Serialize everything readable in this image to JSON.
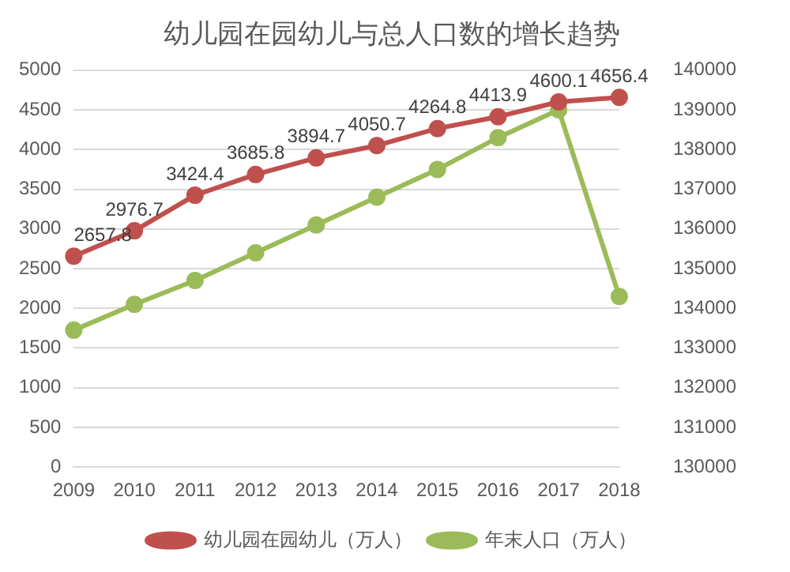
{
  "chart_data": {
    "type": "line",
    "title": "幼儿园在园幼儿与总人口数的增长趋势",
    "categories": [
      "2009",
      "2010",
      "2011",
      "2012",
      "2013",
      "2014",
      "2015",
      "2016",
      "2017",
      "2018"
    ],
    "series": [
      {
        "name": "幼儿园在园幼儿（万人）",
        "color": "#c0504d",
        "values": [
          2657.8,
          2976.7,
          3424.4,
          3685.8,
          3894.7,
          4050.7,
          4264.8,
          4413.9,
          4600.1,
          4656.4
        ],
        "data_labels": true
      },
      {
        "name": "年末人口（万人）",
        "color": "#9bbb59",
        "axis": "y2",
        "values": [
          133450,
          134100,
          134700,
          135400,
          136100,
          136800,
          137500,
          138300,
          139000,
          134300
        ]
      }
    ],
    "ylim": [
      0,
      5000
    ],
    "yticks": [
      0,
      500,
      1000,
      1500,
      2000,
      2500,
      3000,
      3500,
      4000,
      4500,
      5000
    ],
    "y2lim": [
      130000,
      140000
    ],
    "y2ticks": [
      130000,
      131000,
      132000,
      133000,
      134000,
      135000,
      136000,
      137000,
      138000,
      139000,
      140000
    ],
    "grid": "y",
    "legend": "bottom",
    "marker": "circle",
    "line_style": "solid"
  }
}
